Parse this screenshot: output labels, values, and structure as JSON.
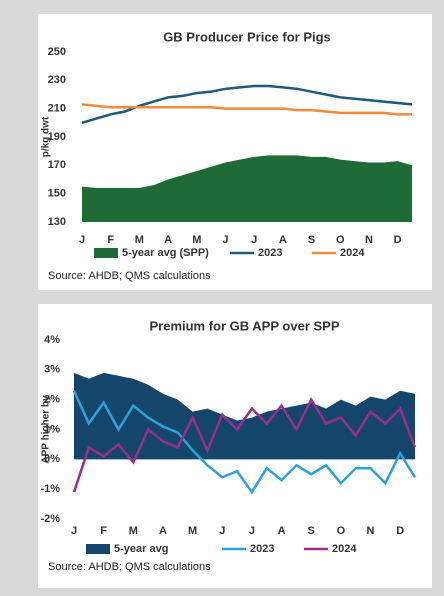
{
  "chart_data": [
    {
      "type": "line",
      "title": "GB Producer Price for Pigs",
      "y_label": "p/kg dwt",
      "source": "Source: AHDB; QMS calculations",
      "categories": [
        "J",
        null,
        "F",
        null,
        "M",
        null,
        "A",
        null,
        "M",
        null,
        "J",
        null,
        "J",
        null,
        "A",
        null,
        "S",
        null,
        "O",
        null,
        "N",
        null,
        "D",
        null
      ],
      "ylim": [
        130,
        250
      ],
      "yticks": [
        130,
        150,
        170,
        190,
        210,
        230,
        250
      ],
      "grid": false,
      "series": [
        {
          "name": "5-year avg (SPP)",
          "kind": "area",
          "color": "#1e6b35",
          "values": [
            155,
            154,
            154,
            154,
            154,
            156,
            160,
            163,
            166,
            169,
            172,
            174,
            176,
            177,
            177,
            177,
            176,
            176,
            174,
            173,
            172,
            172,
            173,
            170
          ]
        },
        {
          "name": "2023",
          "kind": "line",
          "color": "#1f5a7a",
          "values": [
            200,
            203,
            206,
            208,
            212,
            215,
            218,
            219,
            221,
            222,
            224,
            225,
            226,
            226,
            225,
            224,
            222,
            220,
            218,
            217,
            216,
            215,
            214,
            213
          ]
        },
        {
          "name": "2024",
          "kind": "line",
          "color": "#f08a3c",
          "values": [
            213,
            212,
            211,
            211,
            211,
            211,
            211,
            211,
            211,
            211,
            210,
            210,
            210,
            210,
            210,
            209,
            209,
            208,
            207,
            207,
            207,
            207,
            206,
            206
          ]
        }
      ]
    },
    {
      "type": "line",
      "title": "Premium for GB APP over SPP",
      "y_label": "APP higher by",
      "source": "Source: AHDB; QMS calculations",
      "categories": [
        "J",
        null,
        "F",
        null,
        "M",
        null,
        "A",
        null,
        "M",
        null,
        "J",
        null,
        "J",
        null,
        "A",
        null,
        "S",
        null,
        "O",
        null,
        "N",
        null,
        "D",
        null
      ],
      "ylim": [
        -2,
        4
      ],
      "yticks": [
        {
          "value": -2,
          "label": "-2%"
        },
        {
          "value": -1,
          "label": "-1%"
        },
        {
          "value": 0,
          "label": "0%"
        },
        {
          "value": 1,
          "label": "1%"
        },
        {
          "value": 2,
          "label": "2%"
        },
        {
          "value": 3,
          "label": "3%"
        },
        {
          "value": 4,
          "label": "4%"
        }
      ],
      "grid": false,
      "series": [
        {
          "name": "5-year avg",
          "kind": "area",
          "color": "#14466b",
          "values": [
            2.9,
            2.7,
            2.9,
            2.8,
            2.7,
            2.5,
            2.2,
            2.0,
            1.6,
            1.7,
            1.5,
            1.3,
            1.4,
            1.6,
            1.7,
            1.8,
            1.9,
            1.7,
            2.0,
            1.8,
            2.1,
            2.0,
            2.3,
            2.2
          ]
        },
        {
          "name": "2023",
          "kind": "line",
          "color": "#2aa3d8",
          "values": [
            2.3,
            1.2,
            1.9,
            1.0,
            1.8,
            1.4,
            1.1,
            0.9,
            0.3,
            -0.2,
            -0.6,
            -0.4,
            -1.1,
            -0.3,
            -0.7,
            -0.2,
            -0.5,
            -0.2,
            -0.8,
            -0.3,
            -0.3,
            -0.8,
            0.2,
            -0.6
          ]
        },
        {
          "name": "2024",
          "kind": "line",
          "color": "#9b2d8f",
          "values": [
            -1.1,
            0.4,
            0.1,
            0.5,
            -0.1,
            1.0,
            0.6,
            0.4,
            1.4,
            0.3,
            1.5,
            1.0,
            1.7,
            1.2,
            1.8,
            1.0,
            2.0,
            1.2,
            1.4,
            0.8,
            1.6,
            1.2,
            1.7,
            0.4
          ]
        }
      ]
    }
  ]
}
